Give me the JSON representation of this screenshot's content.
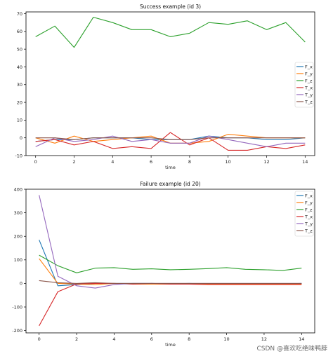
{
  "chart_data": [
    {
      "type": "line",
      "title": "Success example (id 3)",
      "xlabel": "time",
      "ylabel": "",
      "xlim": [
        -0.5,
        14.5
      ],
      "ylim": [
        -10,
        71
      ],
      "xticks": [
        0,
        2,
        4,
        6,
        8,
        10,
        12,
        14
      ],
      "yticks": [
        -10,
        0,
        10,
        20,
        30,
        40,
        50,
        60,
        70
      ],
      "legend": "center-right",
      "x": [
        0,
        1,
        2,
        3,
        4,
        5,
        6,
        7,
        8,
        9,
        10,
        11,
        12,
        13,
        14
      ],
      "series": [
        {
          "name": "F_x",
          "color": "#1f77b4",
          "values": [
            -2,
            -1,
            -1,
            0,
            0,
            0,
            -1,
            -1,
            -1,
            1,
            0,
            0,
            -1,
            -1,
            0
          ]
        },
        {
          "name": "F_y",
          "color": "#ff7f0e",
          "values": [
            0,
            -3,
            1,
            -2,
            -1,
            0,
            1,
            -3,
            -3,
            -2,
            2,
            1,
            0,
            0,
            0
          ]
        },
        {
          "name": "F_z",
          "color": "#2ca02c",
          "values": [
            57,
            63,
            51,
            68,
            65,
            61,
            61,
            57,
            59,
            65,
            64,
            66,
            61,
            65,
            54
          ]
        },
        {
          "name": "T_x",
          "color": "#d62728",
          "values": [
            -2,
            -1,
            -4,
            -2,
            -6,
            -5,
            -6,
            3,
            -4,
            0,
            -7,
            -7,
            -5,
            -6,
            -4
          ]
        },
        {
          "name": "T_y",
          "color": "#9467bd",
          "values": [
            -5,
            0,
            -2,
            -1,
            1,
            -2,
            -1,
            -3,
            -3,
            1,
            -1,
            -3,
            -5,
            -3,
            -3
          ]
        },
        {
          "name": "T_z",
          "color": "#8c564b",
          "values": [
            0,
            0,
            -1,
            0,
            0,
            0,
            0,
            -1,
            -1,
            0,
            0,
            0,
            0,
            0,
            0
          ]
        }
      ]
    },
    {
      "type": "line",
      "title": "Failure example (id 20)",
      "xlabel": "time",
      "ylabel": "",
      "xlim": [
        -0.7,
        14.7
      ],
      "ylim": [
        -210,
        400
      ],
      "xticks": [
        0,
        2,
        4,
        6,
        8,
        10,
        12,
        14
      ],
      "yticks": [
        -200,
        -100,
        0,
        100,
        200,
        300,
        400
      ],
      "legend": "top-right",
      "x": [
        0,
        1,
        2,
        3,
        4,
        5,
        6,
        7,
        8,
        9,
        10,
        11,
        12,
        13,
        14
      ],
      "series": [
        {
          "name": "F_x",
          "color": "#1f77b4",
          "values": [
            185,
            -10,
            -5,
            0,
            0,
            0,
            0,
            -2,
            0,
            -2,
            -2,
            -2,
            -2,
            -2,
            0
          ]
        },
        {
          "name": "F_y",
          "color": "#ff7f0e",
          "values": [
            105,
            0,
            -3,
            -5,
            0,
            -3,
            -3,
            -3,
            -3,
            -3,
            -3,
            -3,
            -3,
            -3,
            -3
          ]
        },
        {
          "name": "F_z",
          "color": "#2ca02c",
          "values": [
            120,
            75,
            45,
            65,
            67,
            60,
            62,
            58,
            60,
            63,
            67,
            60,
            58,
            55,
            65
          ]
        },
        {
          "name": "T_x",
          "color": "#d62728",
          "values": [
            -180,
            -35,
            -2,
            0,
            0,
            -3,
            0,
            -3,
            -3,
            -5,
            -5,
            -5,
            -5,
            -5,
            -5
          ]
        },
        {
          "name": "T_y",
          "color": "#9467bd",
          "values": [
            375,
            30,
            -10,
            -20,
            -5,
            0,
            0,
            0,
            0,
            0,
            0,
            0,
            0,
            0,
            0
          ]
        },
        {
          "name": "T_z",
          "color": "#8c564b",
          "values": [
            12,
            3,
            0,
            3,
            0,
            0,
            0,
            0,
            0,
            0,
            0,
            0,
            0,
            0,
            0
          ]
        }
      ]
    }
  ],
  "watermark": "CSDN @喜欢吃绝味鸭脖"
}
